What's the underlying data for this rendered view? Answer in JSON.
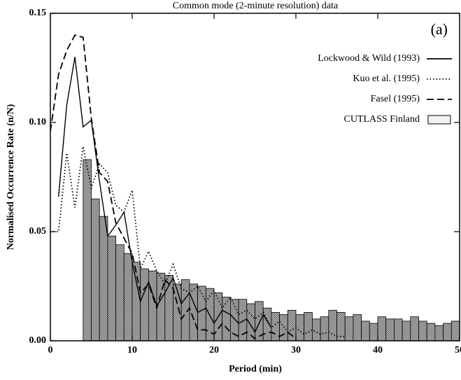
{
  "chart_data": {
    "type": "histogram",
    "title": "Common mode (2-minute resolution) data",
    "xlabel": "Period (min)",
    "ylabel": "Normalised Occurrence Rate (n/N)",
    "annotation": "(a)",
    "xlim": [
      0,
      50
    ],
    "ylim": [
      0,
      0.15
    ],
    "xticks": [
      0,
      10,
      20,
      30,
      40,
      50
    ],
    "yticks": [
      {
        "value": 0,
        "label": "0.00"
      },
      {
        "value": 0.05,
        "label": "0.05"
      },
      {
        "value": 0.1,
        "label": "0.10"
      },
      {
        "value": 0.15,
        "label": "0.15"
      }
    ],
    "legend": "upper right",
    "bar_name": "CUTLASS Finland",
    "bar_color": "#9a9a9a",
    "bins": [
      4,
      5,
      6,
      7,
      8,
      9,
      10,
      11,
      12,
      13,
      14,
      15,
      16,
      17,
      18,
      19,
      20,
      21,
      22,
      23,
      24,
      25,
      26,
      27,
      28,
      29,
      30,
      31,
      32,
      33,
      34,
      35,
      36,
      37,
      38,
      39,
      40,
      41,
      42,
      43,
      44,
      45,
      46,
      47,
      48,
      49,
      50
    ],
    "values": [
      0.083,
      0.065,
      0.057,
      0.048,
      0.044,
      0.04,
      0.036,
      0.033,
      0.032,
      0.031,
      0.03,
      0.026,
      0.028,
      0.026,
      0.025,
      0.024,
      0.022,
      0.02,
      0.019,
      0.019,
      0.017,
      0.018,
      0.015,
      0.013,
      0.012,
      0.014,
      0.012,
      0.013,
      0.01,
      0.011,
      0.014,
      0.013,
      0.011,
      0.012,
      0.009,
      0.008,
      0.011,
      0.01,
      0.01,
      0.009,
      0.011,
      0.009,
      0.008,
      0.007,
      0.008,
      0.009
    ],
    "series": [
      {
        "name": "Lockwood & Wild (1993)",
        "color": "#000000",
        "dash": "solid",
        "x": [
          1,
          2,
          3,
          4,
          5,
          6,
          7,
          8,
          9,
          10,
          11,
          12,
          13,
          14,
          15,
          16,
          17,
          18,
          19,
          20,
          21,
          22,
          23,
          24,
          25,
          26,
          27
        ],
        "values": [
          0.066,
          0.108,
          0.13,
          0.098,
          0.101,
          0.073,
          0.048,
          0.053,
          0.059,
          0.036,
          0.018,
          0.027,
          0.016,
          0.022,
          0.029,
          0.017,
          0.022,
          0.013,
          0.015,
          0.008,
          0.014,
          0.012,
          0.008,
          0.01,
          0.004,
          0.012,
          0.006
        ]
      },
      {
        "name": "Kuo et al. (1995)",
        "color": "#000000",
        "dash": "dotted",
        "x": [
          0,
          1,
          2,
          3,
          4,
          5,
          6,
          7,
          8,
          9,
          10,
          11,
          12,
          13,
          14,
          15,
          16,
          17,
          18,
          19,
          20,
          21,
          22,
          23,
          24,
          25,
          26,
          27,
          28,
          29,
          30,
          31,
          32,
          33,
          34,
          35,
          36
        ],
        "values": [
          0.05,
          0.05,
          0.086,
          0.061,
          0.089,
          0.07,
          0.081,
          0.077,
          0.062,
          0.059,
          0.069,
          0.033,
          0.041,
          0.032,
          0.026,
          0.035,
          0.024,
          0.022,
          0.025,
          0.018,
          0.023,
          0.015,
          0.02,
          0.012,
          0.014,
          0.01,
          0.013,
          0.006,
          0.009,
          0.004,
          0.006,
          0.003,
          0.005,
          0.003,
          0.004,
          0.002,
          0.002
        ]
      },
      {
        "name": "Fasel (1995)",
        "color": "#000000",
        "dash": "dashed",
        "x": [
          0,
          1,
          2,
          3,
          4,
          5,
          6,
          7,
          8,
          9,
          10,
          11,
          12,
          13,
          14,
          15,
          16,
          17,
          18,
          19,
          20,
          21,
          22,
          23,
          24,
          25,
          26,
          27,
          28,
          29,
          30
        ],
        "values": [
          0.096,
          0.122,
          0.133,
          0.14,
          0.139,
          0.102,
          0.077,
          0.073,
          0.054,
          0.047,
          0.04,
          0.022,
          0.026,
          0.015,
          0.028,
          0.024,
          0.01,
          0.015,
          0.005,
          0.005,
          0.003,
          0.008,
          0.004,
          0.002,
          0.004,
          0.001,
          0.003,
          0.004,
          0.002,
          0.004,
          0.001
        ]
      }
    ]
  }
}
